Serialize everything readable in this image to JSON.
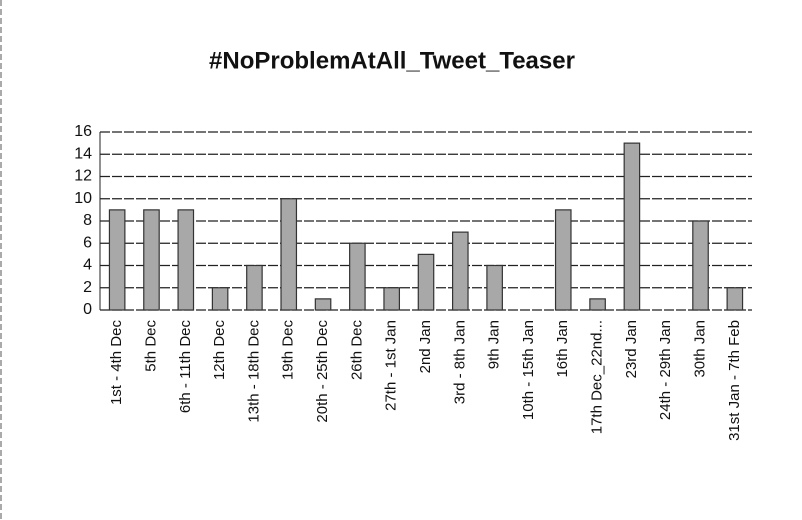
{
  "chart_data": {
    "type": "bar",
    "title": "#NoProblemAtAll_Tweet_Teaser",
    "categories": [
      "1st - 4th Dec",
      "5th Dec",
      "6th - 11th Dec",
      "12th Dec",
      "13th - 18th Dec",
      "19th Dec",
      "20th - 25th Dec",
      "26th Dec",
      "27th - 1st Jan",
      "2nd Jan",
      "3rd - 8th Jan",
      "9th Jan",
      "10th - 15th Jan",
      "16th Jan",
      "17th Dec_22nd...",
      "23rd Jan",
      "24th - 29th Jan",
      "30th Jan",
      "31st Jan - 7th Feb"
    ],
    "values": [
      9,
      9,
      9,
      2,
      4,
      10,
      1,
      6,
      2,
      5,
      7,
      4,
      0,
      9,
      1,
      15,
      0,
      8,
      2
    ],
    "color": "#a8a8a8",
    "ylim": [
      0,
      16
    ],
    "yticks": [
      0,
      2,
      4,
      6,
      8,
      10,
      12,
      14,
      16
    ],
    "grid": true
  }
}
